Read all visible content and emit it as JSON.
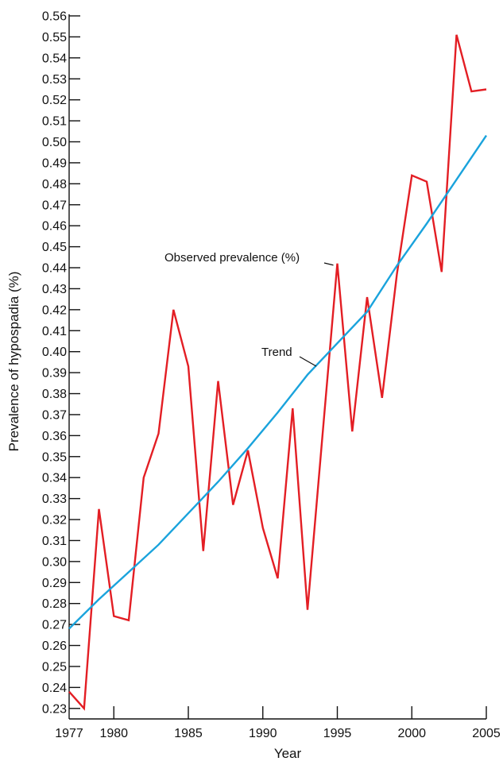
{
  "chart_data": {
    "type": "line",
    "title": "",
    "xlabel": "Year",
    "ylabel": "Prevalence of hypospadia (%)",
    "xlim": [
      1977,
      2005
    ],
    "ylim": [
      0.225,
      0.56
    ],
    "x_ticks": [
      1977,
      1980,
      1985,
      1990,
      1995,
      2000,
      2005
    ],
    "y_ticks": [
      "0.23",
      "0.24",
      "0.25",
      "0.26",
      "0.27",
      "0.28",
      "0.29",
      "0.30",
      "0.31",
      "0.32",
      "0.33",
      "0.34",
      "0.35",
      "0.36",
      "0.37",
      "0.38",
      "0.39",
      "0.40",
      "0.41",
      "0.42",
      "0.43",
      "0.44",
      "0.45",
      "0.46",
      "0.47",
      "0.48",
      "0.49",
      "0.50",
      "0.51",
      "0.52",
      "0.53",
      "0.54",
      "0.55",
      "0.56"
    ],
    "grid": false,
    "series": [
      {
        "name": "Observed prevalence (%)",
        "color": "#e31e24",
        "x": [
          1977,
          1978,
          1979,
          1980,
          1981,
          1982,
          1983,
          1984,
          1985,
          1986,
          1987,
          1988,
          1989,
          1990,
          1991,
          1992,
          1993,
          1994,
          1995,
          1996,
          1997,
          1998,
          1999,
          2000,
          2001,
          2002,
          2003,
          2004,
          2005
        ],
        "y": [
          0.238,
          0.23,
          0.325,
          0.274,
          0.272,
          0.34,
          0.361,
          0.42,
          0.393,
          0.305,
          0.386,
          0.327,
          0.353,
          0.316,
          0.292,
          0.373,
          0.277,
          0.36,
          0.442,
          0.362,
          0.426,
          0.378,
          0.437,
          0.484,
          0.481,
          0.438,
          0.551,
          0.524,
          0.525
        ]
      },
      {
        "name": "Trend",
        "color": "#1aa3dc",
        "x": [
          1977,
          1979,
          1981,
          1983,
          1985,
          1987,
          1989,
          1991,
          1993,
          1995,
          1997,
          1999,
          2001,
          2003,
          2005
        ],
        "y": [
          0.268,
          0.282,
          0.295,
          0.308,
          0.323,
          0.338,
          0.354,
          0.371,
          0.389,
          0.404,
          0.419,
          0.441,
          0.461,
          0.482,
          0.503
        ]
      }
    ],
    "annotations": [
      {
        "text": "Observed prevalence (%)",
        "series": 0
      },
      {
        "text": "Trend",
        "series": 1
      }
    ]
  }
}
